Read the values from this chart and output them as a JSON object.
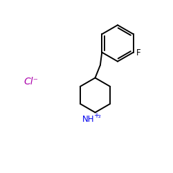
{
  "background_color": "#ffffff",
  "bond_color": "#000000",
  "nh2_color": "#0000ee",
  "cl_color": "#aa00aa",
  "F_color": "#000000",
  "cl_label": "Cl⁻",
  "F_label": "F",
  "figsize": [
    2.5,
    2.5
  ],
  "dpi": 100,
  "lw": 1.4
}
